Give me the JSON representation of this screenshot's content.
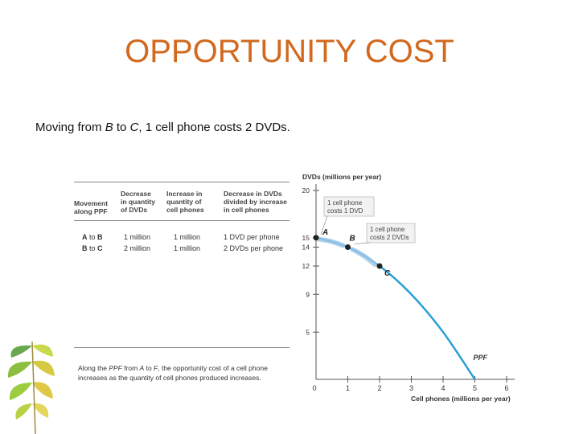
{
  "slide": {
    "title": "OPPORTUNITY COST",
    "subtitle_parts": [
      "Moving from ",
      "B",
      " to ",
      "C",
      ", 1 cell phone costs 2 DVDs."
    ]
  },
  "table": {
    "headers": [
      "Movement\nalong PPF",
      "Decrease\nin quantity\nof DVDs",
      "Increase in\nquantity of\ncell phones",
      "Decrease in DVDs\ndivided by increase\nin cell phones"
    ],
    "rows": [
      {
        "move_from": "A",
        "move_to": "B",
        "sep": "to",
        "dvd_decrease": "1 million",
        "phone_increase": "1 million",
        "ratio": "1 DVD per phone"
      },
      {
        "move_from": "B",
        "move_to": "C",
        "sep": "to",
        "dvd_decrease": "2 million",
        "phone_increase": "1 million",
        "ratio": "2 DVDs per phone"
      }
    ],
    "footnote_parts": [
      "Along the ",
      "PPF",
      " from ",
      "A",
      " to ",
      "F",
      ", the opportunity cost of a cell phone increases as the quantity of cell phones produced increases."
    ]
  },
  "chart_data": {
    "type": "line",
    "ylabel": "DVDs (millions per year)",
    "xlabel": "Cell phones (millions per year)",
    "x_ticks": [
      "0",
      "1",
      "2",
      "3",
      "4",
      "5",
      "6"
    ],
    "y_ticks": [
      "5",
      "9",
      "12",
      "14",
      "15",
      "20"
    ],
    "xlim": [
      0,
      6
    ],
    "ylim": [
      0,
      20
    ],
    "series": [
      {
        "name": "PPF",
        "x": [
          0,
          1,
          2,
          3,
          4,
          5
        ],
        "y": [
          15,
          14,
          12,
          9,
          5,
          0
        ],
        "color": "#2a9fd6"
      }
    ],
    "points": [
      {
        "label": "A",
        "x": 0,
        "y": 15
      },
      {
        "label": "B",
        "x": 1,
        "y": 14
      },
      {
        "label": "C",
        "x": 2,
        "y": 12
      }
    ],
    "callouts": [
      {
        "text": "1 cell phone\ncosts 1 DVD"
      },
      {
        "text": "1 cell phone\ncosts 2 DVDs"
      }
    ]
  }
}
